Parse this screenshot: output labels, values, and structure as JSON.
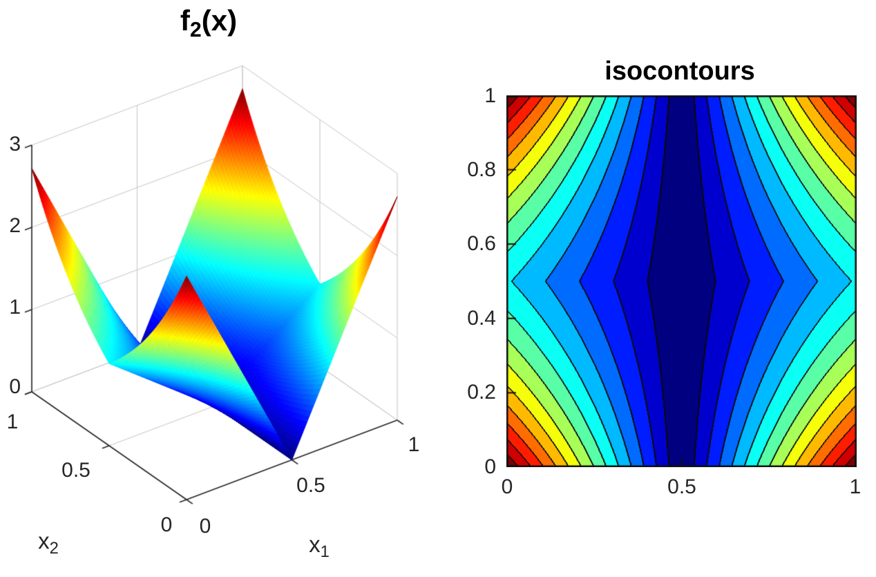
{
  "chart_data": [
    {
      "type": "surface",
      "title": {
        "base": "f",
        "sub": "2",
        "tail": "(x)"
      },
      "xlabel": {
        "base": "x",
        "sub": "1"
      },
      "ylabel": {
        "base": "x",
        "sub": "2"
      },
      "function": "f2(x) = |2*x1 - 1| * exp(|2*x2 - 1|)",
      "formula_js": "Math.abs(2*x1-1)*Math.exp(Math.abs(2*x2-1))",
      "x_range": [
        0,
        1
      ],
      "y_range": [
        0,
        1
      ],
      "z_range": [
        0,
        3
      ],
      "x_ticks": [
        "0",
        "0.5",
        "1"
      ],
      "y_ticks": [
        "1",
        "0.5",
        "0"
      ],
      "z_ticks": [
        "3",
        "2",
        "1",
        "0"
      ],
      "surface_max": 2.71828,
      "peaks": [
        {
          "x1": 0,
          "x2": 0,
          "z": 2.72
        },
        {
          "x1": 0,
          "x2": 1,
          "z": 2.72
        },
        {
          "x1": 1,
          "x2": 0,
          "z": 2.72
        },
        {
          "x1": 1,
          "x2": 1,
          "z": 2.72
        }
      ],
      "valley": "f = 0 along the line x1 = 0.5",
      "colormap": "jet",
      "shading": "interp",
      "grid": true,
      "view": "azimuth -37.5, elevation 30"
    },
    {
      "type": "contour",
      "title": "isocontours",
      "function": "f2(x) = |2*x1 - 1| * exp(|2*x2 - 1|)",
      "formula_js": "Math.abs(2*x1-1)*Math.exp(Math.abs(2*x2-1))",
      "x_range": [
        0,
        1
      ],
      "y_range": [
        0,
        1
      ],
      "x_ticks": [
        "0",
        "0.5",
        "1"
      ],
      "y_ticks": [
        "0",
        "0.2",
        "0.4",
        "0.6",
        "0.8",
        "1"
      ],
      "levels": 14,
      "level_min": 0,
      "level_max": 2.71828,
      "colormap": "jet",
      "line_color": "#000000"
    }
  ],
  "colors": {
    "text": "#262626",
    "axis": "#262626",
    "grid3d": "#c3c3c3",
    "jet_low": "#00007f",
    "jet_high": "#7f0000"
  }
}
